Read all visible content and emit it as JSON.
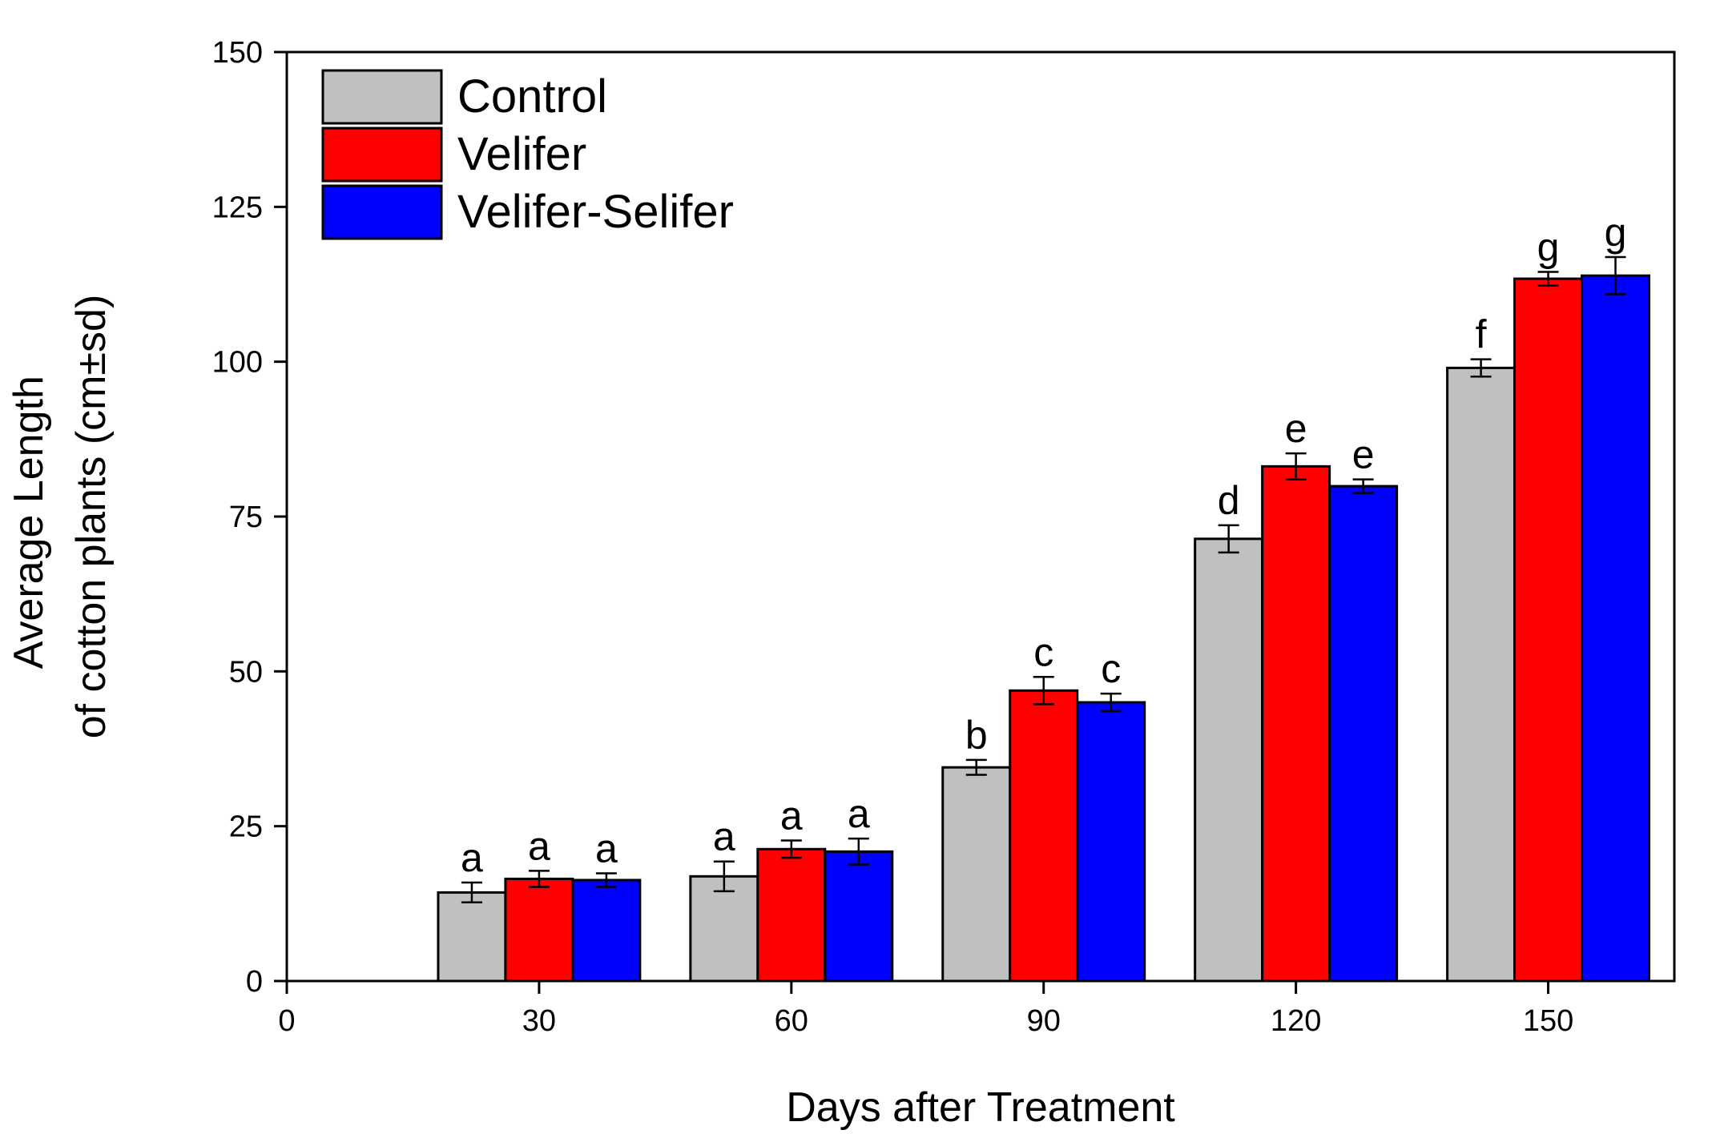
{
  "chart_data": {
    "type": "bar",
    "title": "",
    "xlabel": "Days after Treatment",
    "ylabel_lines": [
      "Average Length",
      "of cotton plants (cm±sd)"
    ],
    "xlim": [
      0,
      165
    ],
    "ylim": [
      0,
      150
    ],
    "x_ticks": [
      0,
      30,
      60,
      90,
      120,
      150
    ],
    "y_ticks": [
      0,
      25,
      50,
      75,
      100,
      125,
      150
    ],
    "categories": [
      30,
      60,
      90,
      120,
      150
    ],
    "bar_width_days": 8,
    "legend_position": "top-left",
    "series": [
      {
        "name": "Control",
        "color": "#c0c0c0",
        "values": [
          14.3,
          16.9,
          34.5,
          71.4,
          99.0
        ],
        "errors": [
          1.6,
          2.4,
          1.2,
          2.2,
          1.4
        ],
        "letters": [
          "a",
          "a",
          "b",
          "d",
          "f"
        ]
      },
      {
        "name": "Velifer",
        "color": "#ff0000",
        "values": [
          16.5,
          21.3,
          46.9,
          83.1,
          113.4
        ],
        "errors": [
          1.3,
          1.4,
          2.2,
          2.1,
          1.1
        ],
        "letters": [
          "a",
          "a",
          "c",
          "e",
          "g"
        ]
      },
      {
        "name": "Velifer-Selifer",
        "color": "#0000ff",
        "values": [
          16.3,
          20.9,
          45.0,
          79.9,
          113.9
        ],
        "errors": [
          1.1,
          2.1,
          1.4,
          1.1,
          3.0
        ],
        "letters": [
          "a",
          "a",
          "c",
          "e",
          "g"
        ]
      }
    ]
  }
}
